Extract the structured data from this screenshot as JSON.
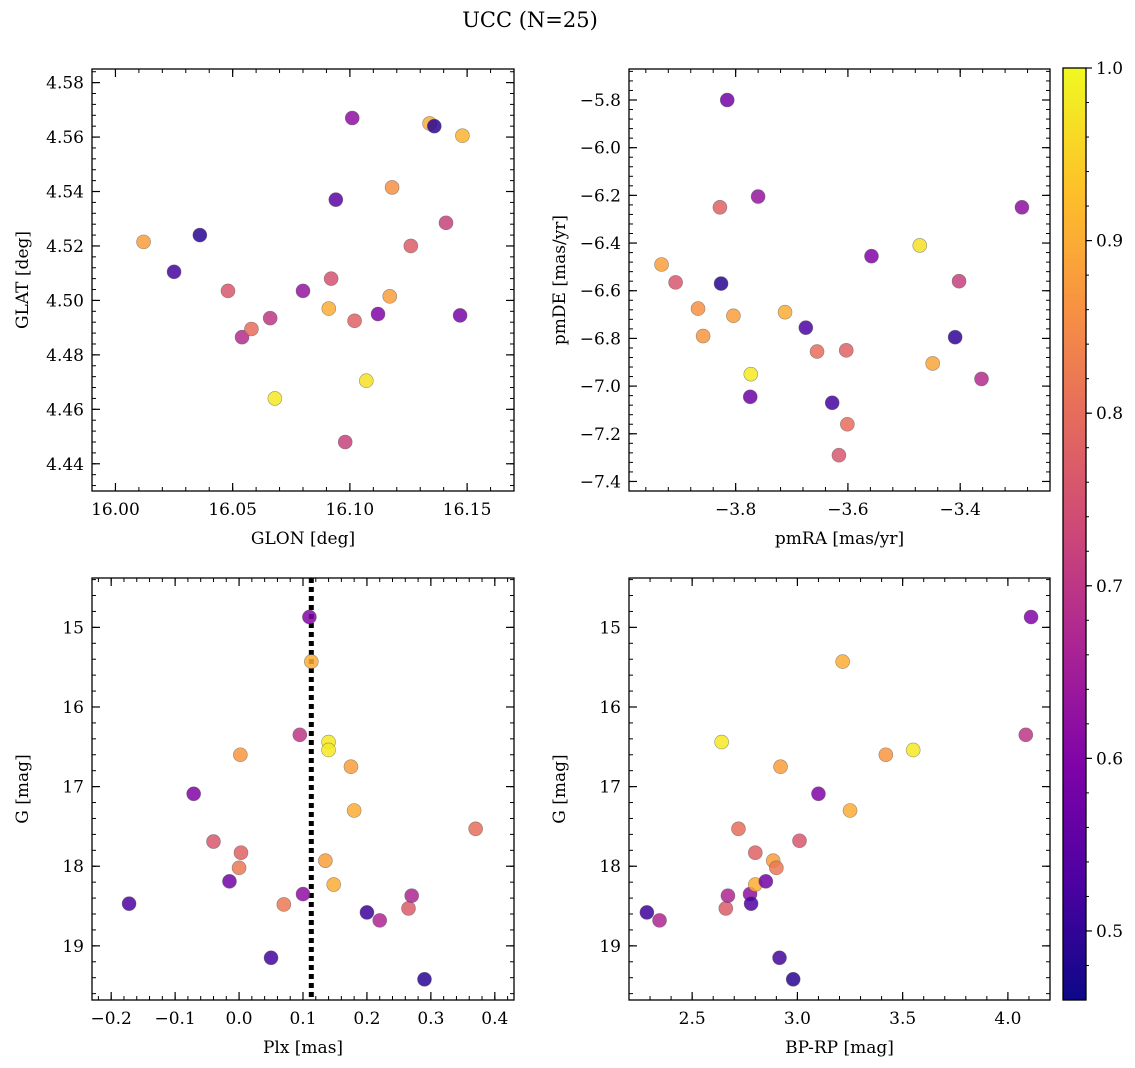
{
  "chart_data": {
    "title": "UCC (N=25)",
    "colorbar": {
      "range": [
        0.46,
        1.0
      ],
      "ticks": [
        0.5,
        0.6,
        0.7,
        0.8,
        0.9,
        1.0
      ],
      "tick_labels": [
        "0.5",
        "0.6",
        "0.7",
        "0.8",
        "0.9",
        "1.0"
      ],
      "colormap": "plasma"
    },
    "panels": [
      {
        "id": "glon-glat",
        "type": "scatter",
        "xlabel": "GLON [deg]",
        "ylabel": "GLAT [deg]",
        "xlim": [
          15.99,
          16.17
        ],
        "ylim": [
          4.43,
          4.585
        ],
        "y_inverted": false,
        "xticks": [
          16.0,
          16.05,
          16.1,
          16.15
        ],
        "xtick_labels": [
          "16.00",
          "16.05",
          "16.10",
          "16.15"
        ],
        "yticks": [
          4.44,
          4.46,
          4.48,
          4.5,
          4.52,
          4.54,
          4.56,
          4.58
        ],
        "ytick_labels": [
          "4.44",
          "4.46",
          "4.48",
          "4.50",
          "4.52",
          "4.54",
          "4.56",
          "4.58"
        ],
        "points": [
          {
            "x": 16.012,
            "y": 4.5215,
            "c": 0.88
          },
          {
            "x": 16.036,
            "y": 4.524,
            "c": 0.49
          },
          {
            "x": 16.025,
            "y": 4.5105,
            "c": 0.52
          },
          {
            "x": 16.048,
            "y": 4.5035,
            "c": 0.76
          },
          {
            "x": 16.054,
            "y": 4.4865,
            "c": 0.68
          },
          {
            "x": 16.058,
            "y": 4.4895,
            "c": 0.8
          },
          {
            "x": 16.066,
            "y": 4.4935,
            "c": 0.7
          },
          {
            "x": 16.068,
            "y": 4.464,
            "c": 0.98
          },
          {
            "x": 16.08,
            "y": 4.5035,
            "c": 0.63
          },
          {
            "x": 16.091,
            "y": 4.497,
            "c": 0.9
          },
          {
            "x": 16.092,
            "y": 4.508,
            "c": 0.75
          },
          {
            "x": 16.094,
            "y": 4.537,
            "c": 0.55
          },
          {
            "x": 16.098,
            "y": 4.448,
            "c": 0.72
          },
          {
            "x": 16.101,
            "y": 4.567,
            "c": 0.62
          },
          {
            "x": 16.102,
            "y": 4.4925,
            "c": 0.78
          },
          {
            "x": 16.107,
            "y": 4.4705,
            "c": 0.97
          },
          {
            "x": 16.112,
            "y": 4.495,
            "c": 0.6
          },
          {
            "x": 16.117,
            "y": 4.5015,
            "c": 0.88
          },
          {
            "x": 16.118,
            "y": 4.5415,
            "c": 0.86
          },
          {
            "x": 16.126,
            "y": 4.52,
            "c": 0.77
          },
          {
            "x": 16.134,
            "y": 4.565,
            "c": 0.9
          },
          {
            "x": 16.136,
            "y": 4.564,
            "c": 0.49
          },
          {
            "x": 16.141,
            "y": 4.5285,
            "c": 0.72
          },
          {
            "x": 16.147,
            "y": 4.4945,
            "c": 0.59
          },
          {
            "x": 16.148,
            "y": 4.5605,
            "c": 0.91
          }
        ]
      },
      {
        "id": "pmra-pmde",
        "type": "scatter",
        "xlabel": "pmRA [mas/yr]",
        "ylabel": "pmDE [mas/yr]",
        "xlim": [
          -3.99,
          -3.24
        ],
        "ylim": [
          -7.44,
          -5.67
        ],
        "y_inverted": false,
        "xticks": [
          -3.8,
          -3.6,
          -3.4
        ],
        "xtick_labels": [
          "−3.8",
          "−3.6",
          "−3.4"
        ],
        "yticks": [
          -7.4,
          -7.2,
          -7.0,
          -6.8,
          -6.6,
          -6.4,
          -6.2,
          -6.0,
          -5.8
        ],
        "ytick_labels": [
          "−7.4",
          "−7.2",
          "−7.0",
          "−6.8",
          "−6.6",
          "−6.4",
          "−6.2",
          "−6.0",
          "−5.8"
        ],
        "points": [
          {
            "x": -3.932,
            "y": -6.49,
            "c": 0.88
          },
          {
            "x": -3.907,
            "y": -6.565,
            "c": 0.76
          },
          {
            "x": -3.867,
            "y": -6.675,
            "c": 0.86
          },
          {
            "x": -3.858,
            "y": -6.79,
            "c": 0.87
          },
          {
            "x": -3.828,
            "y": -6.25,
            "c": 0.78
          },
          {
            "x": -3.826,
            "y": -6.57,
            "c": 0.49
          },
          {
            "x": -3.815,
            "y": -5.8,
            "c": 0.58
          },
          {
            "x": -3.804,
            "y": -6.705,
            "c": 0.88
          },
          {
            "x": -3.773,
            "y": -6.95,
            "c": 0.98
          },
          {
            "x": -3.774,
            "y": -7.045,
            "c": 0.57
          },
          {
            "x": -3.76,
            "y": -6.205,
            "c": 0.63
          },
          {
            "x": -3.712,
            "y": -6.69,
            "c": 0.9
          },
          {
            "x": -3.675,
            "y": -6.755,
            "c": 0.53
          },
          {
            "x": -3.655,
            "y": -6.855,
            "c": 0.8
          },
          {
            "x": -3.628,
            "y": -7.07,
            "c": 0.52
          },
          {
            "x": -3.616,
            "y": -7.29,
            "c": 0.76
          },
          {
            "x": -3.603,
            "y": -6.85,
            "c": 0.78
          },
          {
            "x": -3.601,
            "y": -7.16,
            "c": 0.8
          },
          {
            "x": -3.558,
            "y": -6.455,
            "c": 0.6
          },
          {
            "x": -3.472,
            "y": -6.41,
            "c": 0.97
          },
          {
            "x": -3.449,
            "y": -6.905,
            "c": 0.89
          },
          {
            "x": -3.409,
            "y": -6.795,
            "c": 0.5
          },
          {
            "x": -3.402,
            "y": -6.56,
            "c": 0.72
          },
          {
            "x": -3.362,
            "y": -6.97,
            "c": 0.68
          },
          {
            "x": -3.29,
            "y": -6.25,
            "c": 0.62
          }
        ]
      },
      {
        "id": "plx-g",
        "type": "scatter",
        "xlabel": "Plx [mas]",
        "ylabel": "G [mag]",
        "xlim": [
          -0.23,
          0.43
        ],
        "ylim": [
          14.38,
          19.68
        ],
        "y_inverted": true,
        "xticks": [
          -0.2,
          -0.1,
          0.0,
          0.1,
          0.2,
          0.3,
          0.4
        ],
        "xtick_labels": [
          "−0.2",
          "−0.1",
          "0.0",
          "0.1",
          "0.2",
          "0.3",
          "0.4"
        ],
        "yticks": [
          15,
          16,
          17,
          18,
          19
        ],
        "ytick_labels": [
          "15",
          "16",
          "17",
          "18",
          "19"
        ],
        "vline": {
          "x": 0.113,
          "style": "dotted"
        },
        "points": [
          {
            "x": -0.172,
            "y": 18.47,
            "c": 0.53
          },
          {
            "x": -0.071,
            "y": 17.09,
            "c": 0.6
          },
          {
            "x": -0.04,
            "y": 17.69,
            "c": 0.76
          },
          {
            "x": -0.015,
            "y": 18.19,
            "c": 0.58
          },
          {
            "x": 0.002,
            "y": 16.6,
            "c": 0.87
          },
          {
            "x": 0.003,
            "y": 17.83,
            "c": 0.78
          },
          {
            "x": 0.0,
            "y": 18.02,
            "c": 0.82
          },
          {
            "x": 0.05,
            "y": 19.15,
            "c": 0.52
          },
          {
            "x": 0.07,
            "y": 18.48,
            "c": 0.82
          },
          {
            "x": 0.095,
            "y": 16.35,
            "c": 0.7
          },
          {
            "x": 0.1,
            "y": 18.35,
            "c": 0.62
          },
          {
            "x": 0.11,
            "y": 14.87,
            "c": 0.6
          },
          {
            "x": 0.113,
            "y": 15.43,
            "c": 0.9
          },
          {
            "x": 0.135,
            "y": 17.93,
            "c": 0.88
          },
          {
            "x": 0.14,
            "y": 16.44,
            "c": 0.98
          },
          {
            "x": 0.14,
            "y": 16.54,
            "c": 0.98
          },
          {
            "x": 0.148,
            "y": 18.23,
            "c": 0.9
          },
          {
            "x": 0.175,
            "y": 16.75,
            "c": 0.88
          },
          {
            "x": 0.18,
            "y": 17.3,
            "c": 0.9
          },
          {
            "x": 0.2,
            "y": 18.58,
            "c": 0.51
          },
          {
            "x": 0.22,
            "y": 18.68,
            "c": 0.67
          },
          {
            "x": 0.265,
            "y": 18.53,
            "c": 0.77
          },
          {
            "x": 0.27,
            "y": 18.37,
            "c": 0.67
          },
          {
            "x": 0.29,
            "y": 19.42,
            "c": 0.49
          },
          {
            "x": 0.37,
            "y": 17.53,
            "c": 0.8
          }
        ]
      },
      {
        "id": "bprp-g",
        "type": "scatter",
        "xlabel": "BP-RP [mag]",
        "ylabel": "G [mag]",
        "xlim": [
          2.2,
          4.2
        ],
        "ylim": [
          14.38,
          19.68
        ],
        "y_inverted": true,
        "xticks": [
          2.5,
          3.0,
          3.5,
          4.0
        ],
        "xtick_labels": [
          "2.5",
          "3.0",
          "3.5",
          "4.0"
        ],
        "yticks": [
          15,
          16,
          17,
          18,
          19
        ],
        "ytick_labels": [
          "15",
          "16",
          "17",
          "18",
          "19"
        ],
        "points": [
          {
            "x": 2.285,
            "y": 18.58,
            "c": 0.51
          },
          {
            "x": 2.345,
            "y": 18.68,
            "c": 0.67
          },
          {
            "x": 2.64,
            "y": 16.44,
            "c": 0.98
          },
          {
            "x": 2.66,
            "y": 18.53,
            "c": 0.77
          },
          {
            "x": 2.67,
            "y": 18.37,
            "c": 0.67
          },
          {
            "x": 2.72,
            "y": 17.53,
            "c": 0.8
          },
          {
            "x": 2.775,
            "y": 18.35,
            "c": 0.62
          },
          {
            "x": 2.78,
            "y": 18.47,
            "c": 0.53
          },
          {
            "x": 2.8,
            "y": 17.83,
            "c": 0.78
          },
          {
            "x": 2.8,
            "y": 18.23,
            "c": 0.9
          },
          {
            "x": 2.85,
            "y": 18.19,
            "c": 0.58
          },
          {
            "x": 2.885,
            "y": 17.93,
            "c": 0.88
          },
          {
            "x": 2.9,
            "y": 18.02,
            "c": 0.82
          },
          {
            "x": 2.915,
            "y": 19.15,
            "c": 0.52
          },
          {
            "x": 2.92,
            "y": 16.75,
            "c": 0.88
          },
          {
            "x": 2.98,
            "y": 19.42,
            "c": 0.49
          },
          {
            "x": 3.01,
            "y": 17.68,
            "c": 0.76
          },
          {
            "x": 3.1,
            "y": 17.09,
            "c": 0.6
          },
          {
            "x": 3.215,
            "y": 15.43,
            "c": 0.9
          },
          {
            "x": 3.25,
            "y": 17.3,
            "c": 0.9
          },
          {
            "x": 3.42,
            "y": 16.6,
            "c": 0.87
          },
          {
            "x": 3.55,
            "y": 16.54,
            "c": 0.98
          },
          {
            "x": 4.085,
            "y": 16.35,
            "c": 0.7
          },
          {
            "x": 4.11,
            "y": 14.87,
            "c": 0.6
          }
        ]
      }
    ]
  }
}
